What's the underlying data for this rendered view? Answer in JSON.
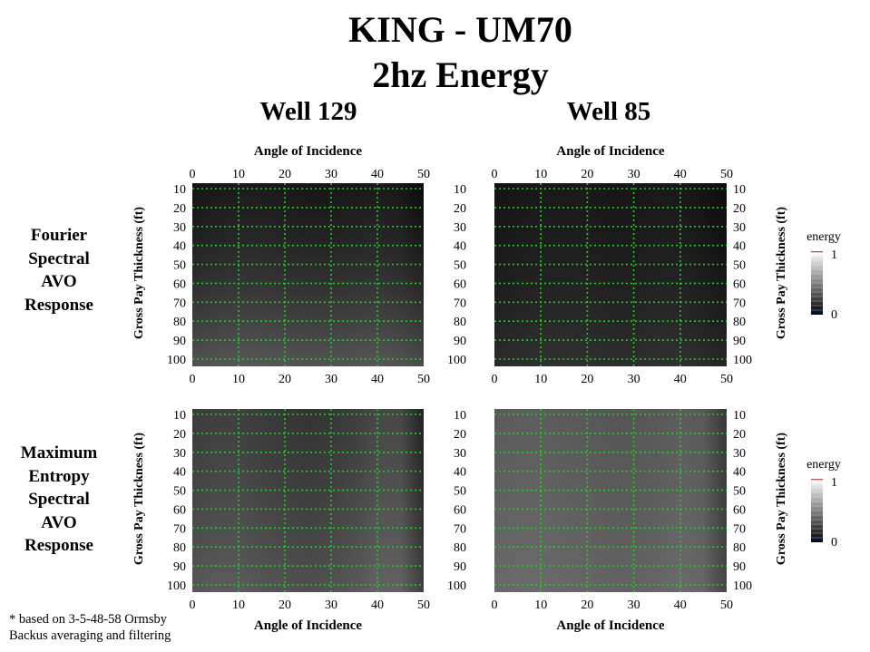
{
  "title": {
    "line1": "KING - UM70",
    "line2": "2hz Energy"
  },
  "wells": [
    "Well 129",
    "Well 85"
  ],
  "rows": [
    {
      "lines": [
        "Fourier",
        "Spectral",
        "AVO",
        "Response"
      ]
    },
    {
      "lines": [
        "Maximum",
        "Entropy",
        "Spectral",
        "AVO",
        "Response"
      ]
    }
  ],
  "footnote": {
    "line1": "* based on 3-5-48-58 Ormsby",
    "line2": "Backus averaging and filtering"
  },
  "chart_data": [
    {
      "type": "heatmap",
      "panel": "Well 129 - Fourier Spectral AVO Response",
      "xlabel": "Angle of Incidence",
      "ylabel": "Gross Pay Thickness (ft)",
      "x_ticks": [
        0,
        10,
        20,
        30,
        40,
        50
      ],
      "y_ticks": [
        10,
        20,
        30,
        40,
        50,
        60,
        70,
        80,
        90,
        100
      ],
      "xlim": [
        0,
        50
      ],
      "ylim": [
        100,
        10
      ],
      "grid": true,
      "grid_color": "#22cc22",
      "x_profile": [
        0,
        5,
        10,
        15,
        20,
        25,
        30,
        35,
        40,
        45,
        50
      ],
      "energy_profile": [
        0.09,
        0.11,
        0.12,
        0.12,
        0.11,
        0.1,
        0.1,
        0.11,
        0.12,
        0.1,
        0.05
      ],
      "thickness_trend": [
        0.85,
        1.25
      ]
    },
    {
      "type": "heatmap",
      "panel": "Well 85 - Fourier Spectral AVO Response",
      "xlabel": "Angle of Incidence",
      "ylabel": "Gross Pay Thickness (ft)",
      "x_ticks": [
        0,
        10,
        20,
        30,
        40,
        50
      ],
      "y_ticks": [
        10,
        20,
        30,
        40,
        50,
        60,
        70,
        80,
        90,
        100
      ],
      "xlim": [
        0,
        50
      ],
      "ylim": [
        100,
        10
      ],
      "grid": true,
      "grid_color": "#22cc22",
      "x_profile": [
        0,
        5,
        10,
        15,
        20,
        25,
        30,
        35,
        40,
        45,
        50
      ],
      "energy_profile": [
        0.08,
        0.09,
        0.1,
        0.1,
        0.1,
        0.09,
        0.09,
        0.1,
        0.1,
        0.08,
        0.05
      ],
      "thickness_trend": [
        0.95,
        1.1
      ]
    },
    {
      "type": "heatmap",
      "panel": "Well 129 - Maximum Entropy Spectral AVO Response",
      "xlabel": "Angle of Incidence",
      "ylabel": "Gross Pay Thickness (ft)",
      "x_ticks": [
        0,
        10,
        20,
        30,
        40,
        50
      ],
      "y_ticks": [
        10,
        20,
        30,
        40,
        50,
        60,
        70,
        80,
        90,
        100
      ],
      "xlim": [
        0,
        50
      ],
      "ylim": [
        100,
        10
      ],
      "grid": true,
      "grid_color": "#22cc22",
      "x_profile": [
        0,
        5,
        10,
        15,
        20,
        25,
        30,
        35,
        40,
        45,
        50
      ],
      "energy_profile": [
        0.25,
        0.27,
        0.27,
        0.25,
        0.23,
        0.22,
        0.23,
        0.26,
        0.3,
        0.3,
        0.14
      ],
      "thickness_trend": [
        0.92,
        1.12
      ]
    },
    {
      "type": "heatmap",
      "panel": "Well 85 - Maximum Entropy Spectral AVO Response",
      "xlabel": "Angle of Incidence",
      "ylabel": "Gross Pay Thickness (ft)",
      "x_ticks": [
        0,
        10,
        20,
        30,
        40,
        50
      ],
      "y_ticks": [
        10,
        20,
        30,
        40,
        50,
        60,
        70,
        80,
        90,
        100
      ],
      "xlim": [
        0,
        50
      ],
      "ylim": [
        100,
        10
      ],
      "grid": true,
      "grid_color": "#22cc22",
      "x_profile": [
        0,
        5,
        10,
        15,
        20,
        25,
        30,
        35,
        40,
        45,
        50
      ],
      "energy_profile": [
        0.37,
        0.38,
        0.38,
        0.37,
        0.36,
        0.35,
        0.35,
        0.36,
        0.38,
        0.36,
        0.22
      ],
      "thickness_trend": [
        0.96,
        1.06
      ]
    }
  ],
  "colorbars": [
    {
      "label": "energy",
      "min_label": "0",
      "max_label": "1",
      "min": 0,
      "max": 1
    },
    {
      "label": "energy",
      "min_label": "0",
      "max_label": "1",
      "min": 0,
      "max": 1
    }
  ]
}
